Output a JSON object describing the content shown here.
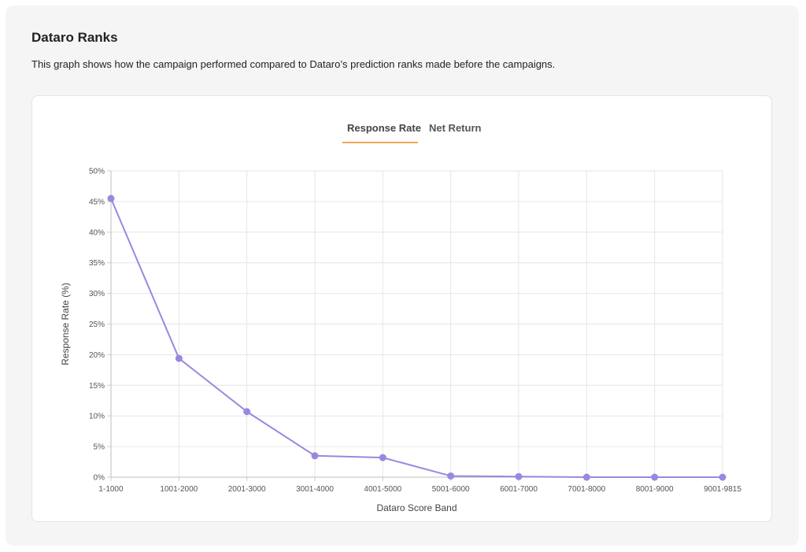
{
  "header": {
    "title": "Dataro Ranks",
    "description": "This graph shows how the campaign performed compared to Dataro’s prediction ranks made before the campaigns."
  },
  "tabs": [
    {
      "label": "Response Rate",
      "active": true
    },
    {
      "label": "Net Return",
      "active": false
    }
  ],
  "colors": {
    "line": "#9b87e0",
    "tab_underline": "#f2a65a",
    "grid": "#e6e6e6"
  },
  "chart_data": {
    "type": "line",
    "xlabel": "Dataro Score Band",
    "ylabel": "Response Rate (%)",
    "categories": [
      "1-1000",
      "1001-2000",
      "2001-3000",
      "3001-4000",
      "4001-5000",
      "5001-6000",
      "6001-7000",
      "7001-8000",
      "8001-9000",
      "9001-9815"
    ],
    "series": [
      {
        "values": [
          45.5,
          19.4,
          10.7,
          3.5,
          3.2,
          0.2,
          0.1,
          0.0,
          0.0,
          0.0
        ]
      }
    ],
    "ylim": [
      0,
      50
    ],
    "yticks": [
      0,
      5,
      10,
      15,
      20,
      25,
      30,
      35,
      40,
      45,
      50
    ],
    "ytick_labels": [
      "0%",
      "5%",
      "10%",
      "15%",
      "20%",
      "25%",
      "30%",
      "35%",
      "40%",
      "45%",
      "50%"
    ],
    "grid": true,
    "legend": "none"
  }
}
